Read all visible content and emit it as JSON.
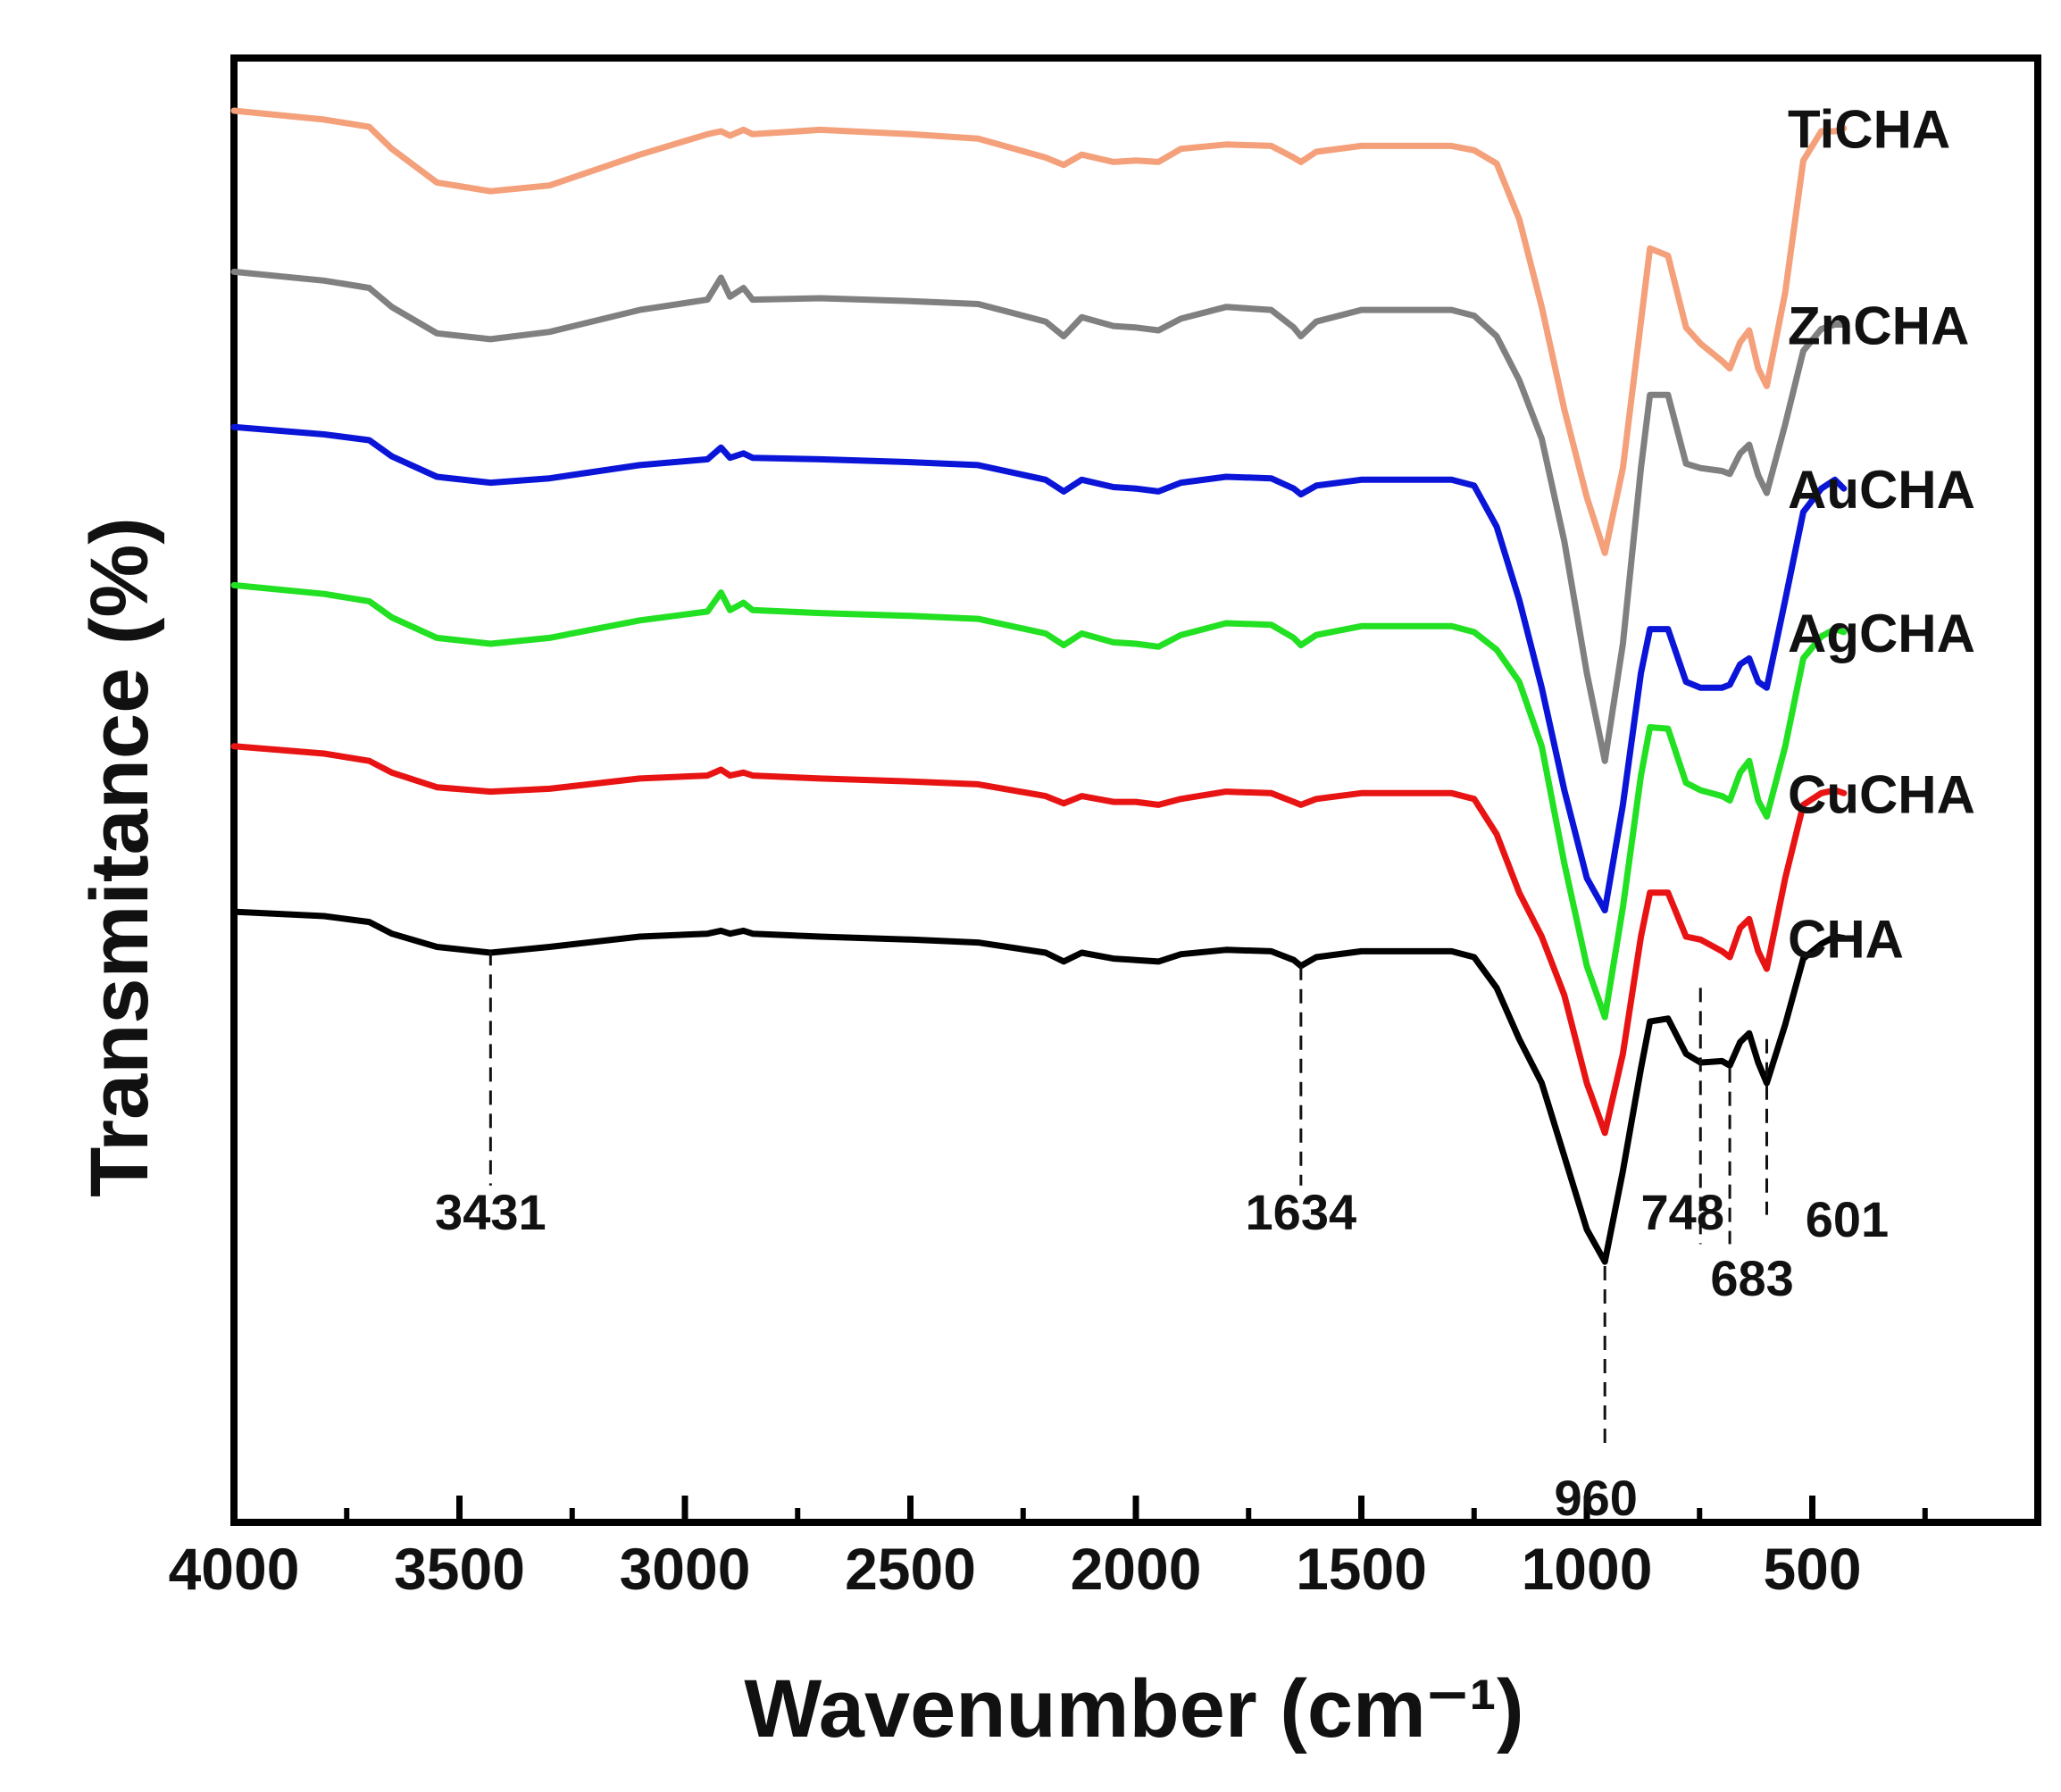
{
  "chart_data": {
    "type": "line",
    "title": "",
    "xlabel": "Wavenumber (cm⁻¹)",
    "ylabel": "Transmitance (%)",
    "xlim": [
      4000,
      0
    ],
    "x_ticks": [
      4000,
      3500,
      3000,
      2500,
      2000,
      1500,
      1000,
      500
    ],
    "grid": false,
    "legend": "right-inline",
    "series": [
      {
        "name": "TiCHA",
        "color": "#f4a07a",
        "x": [
          4000,
          3800,
          3700,
          3650,
          3550,
          3431,
          3300,
          3100,
          2950,
          2920,
          2900,
          2870,
          2850,
          2700,
          2500,
          2350,
          2200,
          2160,
          2120,
          2050,
          2000,
          1950,
          1900,
          1800,
          1700,
          1650,
          1634,
          1600,
          1500,
          1300,
          1250,
          1200,
          1150,
          1100,
          1050,
          1000,
          960,
          920,
          880,
          860,
          820,
          780,
          748,
          700,
          683,
          660,
          640,
          620,
          601,
          560,
          520,
          480,
          450,
          430
        ],
        "y": [
          96.4,
          95.8,
          95.3,
          93.8,
          91.5,
          90.9,
          91.3,
          93.4,
          94.8,
          95.0,
          94.7,
          95.1,
          94.8,
          95.1,
          94.8,
          94.5,
          93.2,
          92.7,
          93.4,
          92.9,
          93.0,
          92.9,
          93.8,
          94.1,
          94.0,
          93.2,
          92.9,
          93.6,
          94.0,
          94.0,
          93.7,
          92.8,
          89.0,
          83.0,
          76.0,
          70.0,
          66.2,
          72.0,
          82.0,
          87.0,
          86.5,
          81.6,
          80.5,
          79.3,
          78.8,
          80.6,
          81.4,
          78.8,
          77.6,
          84.0,
          93.0,
          95.0,
          95.0,
          95.2
        ]
      },
      {
        "name": "ZnCHA",
        "color": "#808080",
        "x": [
          4000,
          3800,
          3700,
          3650,
          3550,
          3431,
          3300,
          3100,
          2950,
          2920,
          2900,
          2870,
          2850,
          2700,
          2500,
          2350,
          2200,
          2160,
          2120,
          2050,
          2000,
          1950,
          1900,
          1800,
          1700,
          1650,
          1634,
          1600,
          1500,
          1300,
          1250,
          1200,
          1150,
          1100,
          1050,
          1000,
          960,
          920,
          880,
          860,
          820,
          780,
          748,
          700,
          683,
          660,
          640,
          620,
          601,
          560,
          520,
          480,
          450,
          430
        ],
        "y": [
          85.4,
          84.8,
          84.3,
          83.0,
          81.2,
          80.8,
          81.3,
          82.8,
          83.5,
          85.0,
          83.7,
          84.3,
          83.5,
          83.6,
          83.4,
          83.2,
          82.0,
          81.0,
          82.3,
          81.7,
          81.6,
          81.4,
          82.2,
          83.0,
          82.8,
          81.6,
          81.0,
          82.0,
          82.8,
          82.8,
          82.4,
          81.0,
          78.0,
          74.0,
          67.0,
          58.0,
          52.0,
          60.0,
          72.0,
          77.0,
          77.0,
          72.3,
          72.0,
          71.8,
          71.6,
          73.0,
          73.6,
          71.5,
          70.3,
          75.0,
          80.0,
          81.5,
          81.8,
          81.8
        ]
      },
      {
        "name": "AuCHA",
        "color": "#0a15d8",
        "x": [
          4000,
          3800,
          3700,
          3650,
          3550,
          3431,
          3300,
          3100,
          2950,
          2920,
          2900,
          2870,
          2850,
          2700,
          2500,
          2350,
          2200,
          2160,
          2120,
          2050,
          2000,
          1950,
          1900,
          1800,
          1700,
          1650,
          1634,
          1600,
          1500,
          1300,
          1250,
          1200,
          1150,
          1100,
          1050,
          1000,
          960,
          920,
          880,
          860,
          820,
          780,
          748,
          700,
          683,
          660,
          640,
          620,
          601,
          560,
          520,
          480,
          450,
          430
        ],
        "y": [
          74.8,
          74.3,
          73.9,
          72.8,
          71.4,
          71.0,
          71.3,
          72.2,
          72.6,
          73.4,
          72.7,
          73.0,
          72.7,
          72.6,
          72.4,
          72.2,
          71.2,
          70.4,
          71.2,
          70.7,
          70.6,
          70.4,
          71.0,
          71.4,
          71.3,
          70.6,
          70.2,
          70.8,
          71.2,
          71.2,
          70.8,
          68.0,
          63.0,
          57.0,
          50.0,
          44.0,
          41.8,
          49.0,
          58.0,
          61.0,
          61.0,
          57.4,
          57.0,
          57.0,
          57.2,
          58.6,
          59.0,
          57.4,
          57.0,
          63.0,
          69.0,
          70.6,
          71.2,
          70.6
        ]
      },
      {
        "name": "AgCHA",
        "color": "#22e022",
        "x": [
          4000,
          3800,
          3700,
          3650,
          3550,
          3431,
          3300,
          3100,
          2950,
          2920,
          2900,
          2870,
          2850,
          2700,
          2500,
          2350,
          2200,
          2160,
          2120,
          2050,
          2000,
          1950,
          1900,
          1800,
          1700,
          1650,
          1634,
          1600,
          1500,
          1300,
          1250,
          1200,
          1150,
          1100,
          1050,
          1000,
          960,
          920,
          880,
          860,
          820,
          780,
          748,
          700,
          683,
          660,
          640,
          620,
          601,
          560,
          520,
          480,
          450,
          430
        ],
        "y": [
          64.0,
          63.4,
          62.9,
          61.8,
          60.4,
          60.0,
          60.4,
          61.6,
          62.2,
          63.5,
          62.3,
          62.8,
          62.3,
          62.1,
          61.9,
          61.7,
          60.7,
          59.9,
          60.7,
          60.1,
          60.0,
          59.8,
          60.6,
          61.4,
          61.3,
          60.4,
          59.9,
          60.6,
          61.2,
          61.2,
          60.8,
          59.6,
          57.4,
          53.0,
          45.0,
          38.0,
          34.5,
          42.0,
          51.0,
          54.3,
          54.2,
          50.5,
          50.0,
          49.6,
          49.3,
          51.2,
          52.0,
          49.3,
          48.2,
          53.0,
          59.0,
          60.5,
          61.0,
          60.8
        ]
      },
      {
        "name": "CuCHA",
        "color": "#e81414",
        "x": [
          4000,
          3800,
          3700,
          3650,
          3550,
          3431,
          3300,
          3100,
          2950,
          2920,
          2900,
          2870,
          2850,
          2700,
          2500,
          2350,
          2200,
          2160,
          2120,
          2050,
          2000,
          1950,
          1900,
          1800,
          1700,
          1650,
          1634,
          1600,
          1500,
          1300,
          1250,
          1200,
          1150,
          1100,
          1050,
          1000,
          960,
          920,
          880,
          860,
          820,
          780,
          748,
          700,
          683,
          660,
          640,
          620,
          601,
          560,
          520,
          480,
          450,
          430
        ],
        "y": [
          53.0,
          52.5,
          52.0,
          51.2,
          50.2,
          49.9,
          50.1,
          50.8,
          51.0,
          51.4,
          51.0,
          51.2,
          51.0,
          50.8,
          50.6,
          50.4,
          49.6,
          49.1,
          49.6,
          49.2,
          49.2,
          49.0,
          49.4,
          49.9,
          49.8,
          49.2,
          49.0,
          49.4,
          49.8,
          49.8,
          49.4,
          47.0,
          43.0,
          40.0,
          36.0,
          30.0,
          26.6,
          32.0,
          40.0,
          43.0,
          43.0,
          40.0,
          39.8,
          39.0,
          38.6,
          40.6,
          41.2,
          39.0,
          37.8,
          44.0,
          49.0,
          49.8,
          50.0,
          49.8
        ]
      },
      {
        "name": "CHA",
        "color": "#000000",
        "x": [
          4000,
          3800,
          3700,
          3650,
          3550,
          3431,
          3300,
          3100,
          2950,
          2920,
          2900,
          2870,
          2850,
          2700,
          2500,
          2350,
          2200,
          2160,
          2120,
          2050,
          2000,
          1950,
          1900,
          1800,
          1700,
          1650,
          1634,
          1600,
          1500,
          1300,
          1250,
          1200,
          1150,
          1100,
          1050,
          1000,
          960,
          920,
          880,
          860,
          820,
          780,
          748,
          700,
          683,
          660,
          640,
          620,
          601,
          560,
          520,
          480,
          450,
          430
        ],
        "y": [
          41.7,
          41.4,
          41.0,
          40.2,
          39.3,
          38.9,
          39.3,
          40.0,
          40.2,
          40.4,
          40.2,
          40.4,
          40.2,
          40.0,
          39.8,
          39.6,
          38.9,
          38.3,
          38.9,
          38.5,
          38.4,
          38.3,
          38.8,
          39.1,
          39.0,
          38.4,
          38.0,
          38.6,
          39.0,
          39.0,
          38.6,
          36.5,
          33.0,
          30.0,
          25.0,
          20.0,
          17.8,
          24.0,
          31.0,
          34.2,
          34.4,
          32.0,
          31.4,
          31.5,
          31.2,
          32.8,
          33.4,
          31.4,
          30.0,
          34.0,
          38.5,
          39.5,
          40.0,
          39.9
        ]
      }
    ],
    "annotations": [
      {
        "label": "3431",
        "x": 3431,
        "line_y": [
          39.0,
          23.0
        ],
        "text_y": 20.0,
        "text_dx": 0
      },
      {
        "label": "1634",
        "x": 1634,
        "line_y": [
          38.0,
          23.0
        ],
        "text_y": 20.0,
        "text_dx": 0
      },
      {
        "label": "960",
        "x": 960,
        "line_y": [
          17.5,
          5.0
        ],
        "text_y": 0.5,
        "text_dx": -10
      },
      {
        "label": "748",
        "x": 748,
        "line_y": [
          36.5,
          19.0
        ],
        "text_y": 20.0,
        "text_dx": -20
      },
      {
        "label": "683",
        "x": 683,
        "line_y": [
          31.0,
          19.0
        ],
        "text_y": 15.5,
        "text_dx": 25
      },
      {
        "label": "601",
        "x": 601,
        "line_y": [
          33.0,
          21.0
        ],
        "text_y": 19.5,
        "text_dx": 90
      }
    ]
  }
}
